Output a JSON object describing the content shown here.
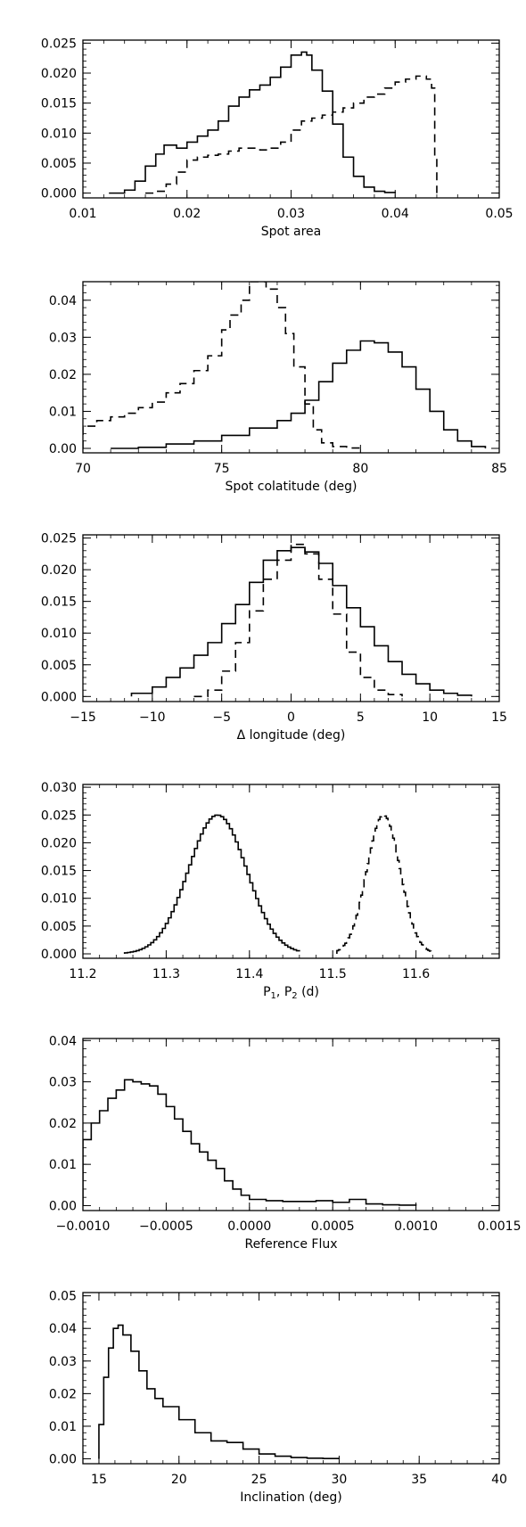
{
  "chart_data": [
    {
      "type": "line",
      "style": "step-histogram",
      "xlabel": "Spot area",
      "ylabel": "",
      "xlim": [
        0.01,
        0.05
      ],
      "ylim": [
        -0.0008,
        0.0255
      ],
      "xticks": [
        0.01,
        0.02,
        0.03,
        0.04,
        0.05
      ],
      "xtick_labels": [
        "0.01",
        "0.02",
        "0.03",
        "0.04",
        "0.05"
      ],
      "yticks": [
        0.0,
        0.005,
        0.01,
        0.015,
        0.02,
        0.025
      ],
      "ytick_labels": [
        "0.000",
        "0.005",
        "0.010",
        "0.015",
        "0.020",
        "0.025"
      ],
      "series": [
        {
          "line_style": "solid",
          "x": [
            0.0125,
            0.014,
            0.015,
            0.016,
            0.017,
            0.0178,
            0.019,
            0.02,
            0.021,
            0.022,
            0.023,
            0.024,
            0.025,
            0.026,
            0.027,
            0.028,
            0.029,
            0.03,
            0.031,
            0.0315,
            0.032,
            0.033,
            0.034,
            0.035,
            0.036,
            0.037,
            0.038,
            0.039,
            0.04
          ],
          "y": [
            0.0,
            0.0005,
            0.002,
            0.0045,
            0.0065,
            0.008,
            0.0075,
            0.0085,
            0.0095,
            0.0105,
            0.012,
            0.0145,
            0.016,
            0.0172,
            0.018,
            0.0193,
            0.021,
            0.023,
            0.0235,
            0.023,
            0.0205,
            0.017,
            0.0115,
            0.006,
            0.0028,
            0.001,
            0.0003,
            0.0001,
            0.0
          ]
        },
        {
          "line_style": "dashed",
          "x": [
            0.016,
            0.017,
            0.018,
            0.019,
            0.02,
            0.021,
            0.022,
            0.023,
            0.024,
            0.025,
            0.026,
            0.027,
            0.028,
            0.029,
            0.03,
            0.031,
            0.032,
            0.033,
            0.034,
            0.035,
            0.036,
            0.037,
            0.038,
            0.039,
            0.04,
            0.041,
            0.042,
            0.0425,
            0.043,
            0.0435,
            0.0438,
            0.044
          ],
          "y": [
            0.0,
            0.0003,
            0.0015,
            0.0035,
            0.0055,
            0.006,
            0.0063,
            0.0065,
            0.007,
            0.0075,
            0.0075,
            0.0072,
            0.0075,
            0.0085,
            0.0105,
            0.012,
            0.0125,
            0.013,
            0.0135,
            0.0142,
            0.015,
            0.016,
            0.0165,
            0.0175,
            0.0185,
            0.019,
            0.0195,
            0.0195,
            0.019,
            0.0175,
            0.006,
            0.0
          ]
        }
      ]
    },
    {
      "type": "line",
      "style": "step-histogram",
      "xlabel": "Spot colatitude (deg)",
      "ylabel": "",
      "xlim": [
        70,
        85
      ],
      "ylim": [
        -0.0012,
        0.045
      ],
      "xticks": [
        70,
        75,
        80,
        85
      ],
      "xtick_labels": [
        "70",
        "75",
        "80",
        "85"
      ],
      "yticks": [
        0.0,
        0.01,
        0.02,
        0.03,
        0.04
      ],
      "ytick_labels": [
        "0.00",
        "0.01",
        "0.02",
        "0.03",
        "0.04"
      ],
      "series": [
        {
          "line_style": "dashed",
          "x": [
            70,
            70.5,
            71,
            71.5,
            72,
            72.5,
            73,
            73.5,
            74,
            74.5,
            75,
            75.3,
            75.7,
            76,
            76.3,
            76.6,
            77,
            77.3,
            77.6,
            78,
            78.3,
            78.6,
            79,
            79.5,
            80
          ],
          "y": [
            0.006,
            0.0075,
            0.0085,
            0.0095,
            0.011,
            0.0125,
            0.015,
            0.0175,
            0.021,
            0.025,
            0.032,
            0.036,
            0.04,
            0.045,
            0.045,
            0.043,
            0.038,
            0.031,
            0.022,
            0.012,
            0.005,
            0.0015,
            0.0005,
            0.0001,
            0.0
          ]
        },
        {
          "line_style": "solid",
          "x": [
            71,
            72,
            73,
            74,
            75,
            76,
            77,
            77.5,
            78,
            78.5,
            79,
            79.5,
            80,
            80.5,
            81,
            81.5,
            82,
            82.5,
            83,
            83.5,
            84,
            84.5
          ],
          "y": [
            0.0,
            0.0003,
            0.0012,
            0.002,
            0.0035,
            0.0055,
            0.0075,
            0.0095,
            0.013,
            0.018,
            0.023,
            0.0265,
            0.029,
            0.0285,
            0.026,
            0.022,
            0.016,
            0.01,
            0.005,
            0.002,
            0.0005,
            0.0
          ]
        }
      ]
    },
    {
      "type": "line",
      "style": "step-histogram",
      "xlabel": "Δ longitude (deg)",
      "ylabel": "",
      "xlim": [
        -15,
        15
      ],
      "ylim": [
        -0.0008,
        0.0255
      ],
      "xticks": [
        -15,
        -10,
        -5,
        0,
        5,
        10,
        15
      ],
      "xtick_labels": [
        "−15",
        "−10",
        "−5",
        "0",
        "5",
        "10",
        "15"
      ],
      "yticks": [
        0.0,
        0.005,
        0.01,
        0.015,
        0.02,
        0.025
      ],
      "ytick_labels": [
        "0.000",
        "0.005",
        "0.010",
        "0.015",
        "0.020",
        "0.025"
      ],
      "series": [
        {
          "line_style": "solid",
          "x": [
            -11.5,
            -10,
            -9,
            -8,
            -7,
            -6,
            -5,
            -4,
            -3,
            -2,
            -1,
            0,
            1,
            2,
            3,
            4,
            5,
            6,
            7,
            8,
            9,
            10,
            11,
            12,
            13
          ],
          "y": [
            0.0005,
            0.0015,
            0.003,
            0.0045,
            0.0065,
            0.0085,
            0.0115,
            0.0145,
            0.018,
            0.0215,
            0.023,
            0.0235,
            0.0228,
            0.021,
            0.0175,
            0.014,
            0.011,
            0.008,
            0.0055,
            0.0035,
            0.002,
            0.001,
            0.0005,
            0.0002,
            0.0
          ]
        },
        {
          "line_style": "dashed",
          "x": [
            -7,
            -6,
            -5,
            -4,
            -3,
            -2,
            -1,
            0,
            1,
            2,
            3,
            4,
            5,
            6,
            7,
            8
          ],
          "y": [
            0.0,
            0.001,
            0.004,
            0.0085,
            0.0135,
            0.0185,
            0.0215,
            0.024,
            0.0225,
            0.0185,
            0.013,
            0.007,
            0.003,
            0.001,
            0.0003,
            0.0
          ]
        }
      ]
    },
    {
      "type": "line",
      "style": "step-histogram",
      "xlabel": "P1, P2 (d)",
      "xlabel_parts": [
        "P",
        "1",
        ", P",
        "2",
        " (d)"
      ],
      "ylabel": "",
      "xlim": [
        11.2,
        11.7
      ],
      "ylim": [
        -0.0008,
        0.0305
      ],
      "xticks": [
        11.2,
        11.3,
        11.4,
        11.5,
        11.6,
        11.7
      ],
      "xtick_labels": [
        "11.2",
        "11.3",
        "11.4",
        "11.5",
        "11.6",
        ""
      ],
      "yticks": [
        0.0,
        0.005,
        0.01,
        0.015,
        0.02,
        0.025,
        0.03
      ],
      "ytick_labels": [
        "0.000",
        "0.005",
        "0.010",
        "0.015",
        "0.020",
        "0.025",
        "0.030"
      ],
      "series": [
        {
          "line_style": "solid",
          "gaussian": {
            "mean": 11.36,
            "sigma": 0.035,
            "peak": 0.025,
            "from": 11.25,
            "to": 11.46
          }
        },
        {
          "line_style": "dashed",
          "gaussian": {
            "mean": 11.56,
            "sigma": 0.02,
            "peak": 0.025,
            "from": 11.505,
            "to": 11.62
          }
        }
      ]
    },
    {
      "type": "line",
      "style": "step-histogram",
      "xlabel": "Reference Flux",
      "ylabel": "",
      "xlim": [
        -0.001,
        0.0015
      ],
      "ylim": [
        -0.0012,
        0.0405
      ],
      "xticks": [
        -0.001,
        -0.0005,
        0.0,
        0.0005,
        0.001,
        0.0015
      ],
      "xtick_labels": [
        "−0.0010",
        "−0.0005",
        "0.0000",
        "0.0005",
        "0.0010",
        "0.0015"
      ],
      "yticks": [
        0.0,
        0.01,
        0.02,
        0.03,
        0.04
      ],
      "ytick_labels": [
        "0.00",
        "0.01",
        "0.02",
        "0.03",
        "0.04"
      ],
      "series": [
        {
          "line_style": "solid",
          "x": [
            -0.001,
            -0.00095,
            -0.0009,
            -0.00085,
            -0.0008,
            -0.00075,
            -0.0007,
            -0.00065,
            -0.0006,
            -0.00055,
            -0.0005,
            -0.00045,
            -0.0004,
            -0.00035,
            -0.0003,
            -0.00025,
            -0.0002,
            -0.00015,
            -0.0001,
            -5e-05,
            0.0,
            0.0001,
            0.0002,
            0.0003,
            0.0004,
            0.0005,
            0.0006,
            0.0007,
            0.0008,
            0.0009,
            0.001
          ],
          "y": [
            0.016,
            0.02,
            0.023,
            0.026,
            0.028,
            0.0305,
            0.03,
            0.0295,
            0.029,
            0.027,
            0.024,
            0.021,
            0.018,
            0.015,
            0.013,
            0.011,
            0.009,
            0.006,
            0.004,
            0.0025,
            0.0015,
            0.0012,
            0.001,
            0.001,
            0.0012,
            0.0008,
            0.0015,
            0.0004,
            0.0002,
            0.0001,
            0.0
          ]
        }
      ]
    },
    {
      "type": "line",
      "style": "step-histogram",
      "xlabel": "Inclination (deg)",
      "ylabel": "",
      "xlim": [
        14,
        40
      ],
      "ylim": [
        -0.0015,
        0.051
      ],
      "xticks": [
        15,
        20,
        25,
        30,
        35,
        40
      ],
      "xtick_labels": [
        "15",
        "20",
        "25",
        "30",
        "35",
        "40"
      ],
      "yticks": [
        0.0,
        0.01,
        0.02,
        0.03,
        0.04,
        0.05
      ],
      "ytick_labels": [
        "0.00",
        "0.01",
        "0.02",
        "0.03",
        "0.04",
        "0.05"
      ],
      "series": [
        {
          "line_style": "solid",
          "x": [
            15,
            15.3,
            15.6,
            15.9,
            16.2,
            16.5,
            17,
            17.5,
            18,
            18.5,
            19,
            20,
            21,
            22,
            23,
            24,
            25,
            26,
            27,
            28,
            29,
            30
          ],
          "y": [
            0.0105,
            0.025,
            0.034,
            0.04,
            0.041,
            0.038,
            0.033,
            0.027,
            0.0215,
            0.0185,
            0.016,
            0.012,
            0.008,
            0.0055,
            0.005,
            0.003,
            0.0015,
            0.0008,
            0.0004,
            0.0002,
            0.0001,
            0.0
          ]
        }
      ]
    }
  ]
}
